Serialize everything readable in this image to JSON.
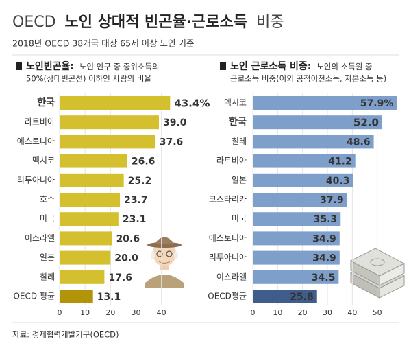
{
  "header": {
    "title_parts": [
      "OECD",
      "노인 상대적 빈곤율·근로소득",
      "비중"
    ],
    "subtitle": "2018년 OECD 38개국 대상 65세 이상 노인 기준"
  },
  "chart_data": [
    {
      "type": "bar",
      "subtitle_label": "노인빈곤율:",
      "subtitle_lines": [
        "노인 인구 중 중위소득의",
        "50%(상대빈곤선) 이하인 사람의 비율"
      ],
      "categories": [
        "한국",
        "라트비아",
        "에스토니아",
        "멕시코",
        "리투아니아",
        "호주",
        "미국",
        "이스라엘",
        "일본",
        "칠레",
        "OECD 평균"
      ],
      "values": [
        43.4,
        39.0,
        37.6,
        26.6,
        25.2,
        23.7,
        23.1,
        20.6,
        20.0,
        17.6,
        13.1
      ],
      "value_labels": [
        "43.4%",
        "39.0",
        "37.6",
        "26.6",
        "25.2",
        "23.7",
        "23.1",
        "20.6",
        "20.0",
        "17.6",
        "13.1"
      ],
      "colors": [
        "#d4c02e",
        "#d4c02e",
        "#d4c02e",
        "#d4c02e",
        "#d4c02e",
        "#d4c02e",
        "#d4c02e",
        "#d4c02e",
        "#d4c02e",
        "#d4c02e",
        "#b39408"
      ],
      "highlight_index": 0,
      "label_position": "outside",
      "xlim": [
        0,
        53
      ],
      "xticks": [
        0,
        10,
        20,
        30,
        40
      ],
      "grid": true
    },
    {
      "type": "bar",
      "subtitle_label": "노인 근로소득 비중:",
      "subtitle_lines": [
        "노인의 소득원 중",
        "근로소득 비중(이외 공적이전소득, 자본소득 등)"
      ],
      "categories": [
        "멕시코",
        "한국",
        "칠레",
        "라트비아",
        "일본",
        "코스타리카",
        "미국",
        "에스토니아",
        "리투아니아",
        "이스라엘",
        "OECD평균"
      ],
      "values": [
        57.9,
        52.0,
        48.6,
        41.2,
        40.3,
        37.9,
        35.3,
        34.9,
        34.9,
        34.5,
        25.8
      ],
      "value_labels": [
        "57.9%",
        "52.0",
        "48.6",
        "41.2",
        "40.3",
        "37.9",
        "35.3",
        "34.9",
        "34.9",
        "34.5",
        "25.8"
      ],
      "colors": [
        "#7f9fcb",
        "#7f9fcb",
        "#7f9fcb",
        "#7f9fcb",
        "#7f9fcb",
        "#7f9fcb",
        "#7f9fcb",
        "#7f9fcb",
        "#7f9fcb",
        "#7f9fcb",
        "#3e5d8b"
      ],
      "highlight_index": 1,
      "label_position": "inside",
      "xlim": [
        0,
        60
      ],
      "xticks": [
        0,
        10,
        20,
        30,
        40,
        50
      ],
      "grid": true
    }
  ],
  "source": "자료: 경제협력개발기구(OECD)"
}
